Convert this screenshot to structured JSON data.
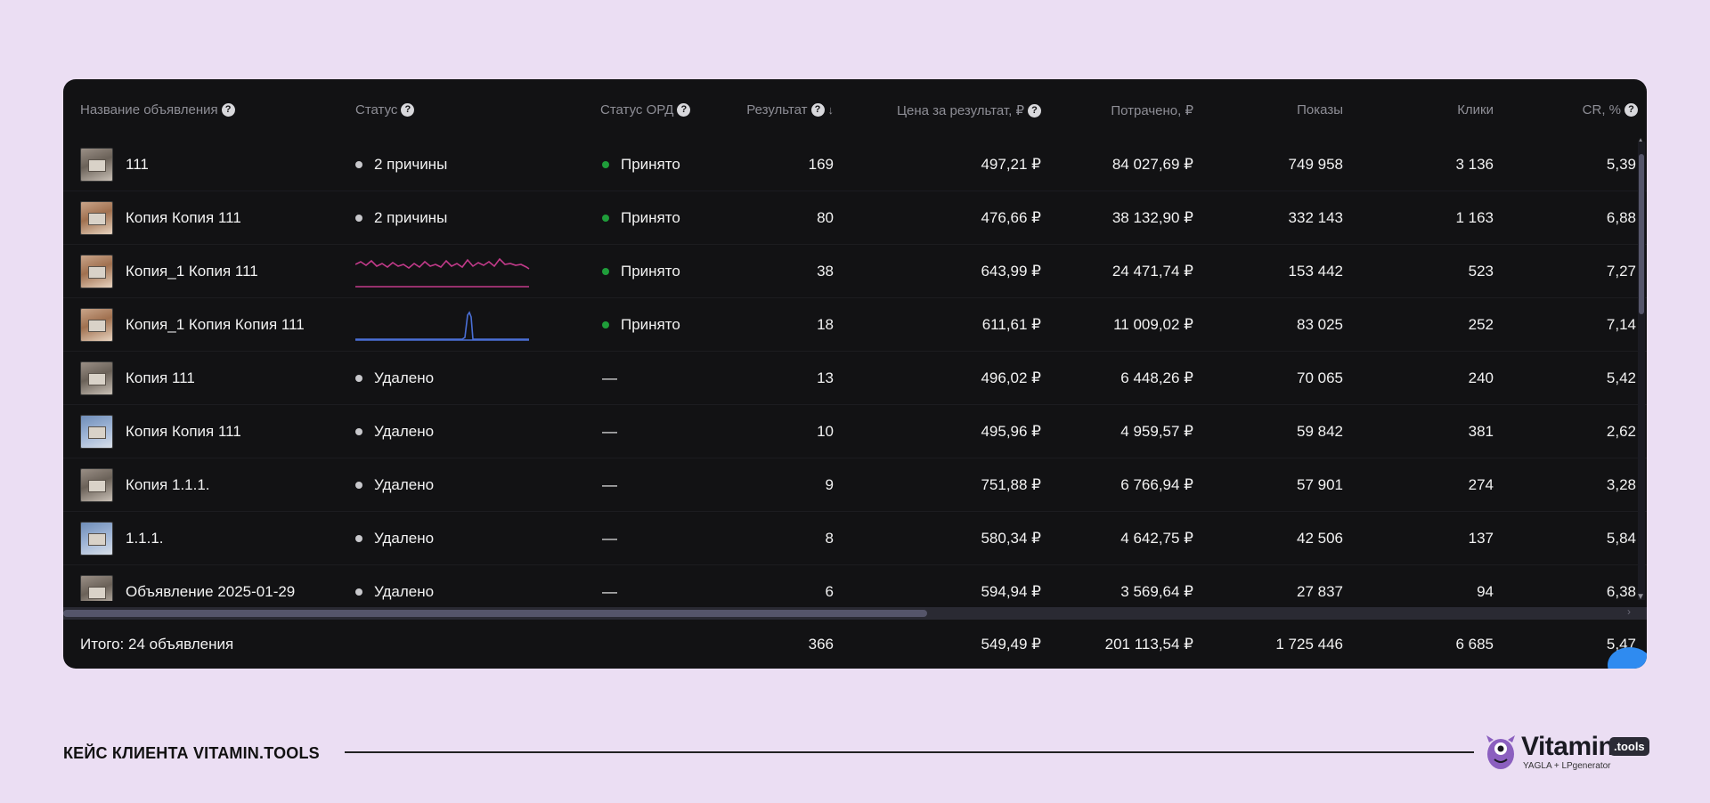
{
  "table": {
    "headers": {
      "name": "Название объявления",
      "status": "Статус",
      "ord_status": "Статус ОРД",
      "result": "Результат",
      "price_per_result": "Цена за результат, ₽",
      "spent": "Потрачено, ₽",
      "impressions": "Показы",
      "clicks": "Клики",
      "cr": "CR, %"
    },
    "rows": [
      {
        "name": "111",
        "status": "2 причины",
        "status_type": "text",
        "ord": "Принято",
        "result": "169",
        "price": "497,21 ₽",
        "spent": "84 027,69 ₽",
        "impressions": "749 958",
        "clicks": "3 136",
        "cr": "5,39",
        "thumb": "gray"
      },
      {
        "name": "Копия Копия 111",
        "status": "2 причины",
        "status_type": "text",
        "ord": "Принято",
        "result": "80",
        "price": "476,66 ₽",
        "spent": "38 132,90 ₽",
        "impressions": "332 143",
        "clicks": "1 163",
        "cr": "6,88",
        "thumb": "alt"
      },
      {
        "name": "Копия_1 Копия 111",
        "status": "",
        "status_type": "spark-pink",
        "ord": "Принято",
        "result": "38",
        "price": "643,99 ₽",
        "spent": "24 471,74 ₽",
        "impressions": "153 442",
        "clicks": "523",
        "cr": "7,27",
        "thumb": "alt"
      },
      {
        "name": "Копия_1 Копия Копия 111",
        "status": "",
        "status_type": "spark-blue",
        "ord": "Принято",
        "result": "18",
        "price": "611,61 ₽",
        "spent": "11 009,02 ₽",
        "impressions": "83 025",
        "clicks": "252",
        "cr": "7,14",
        "thumb": "alt"
      },
      {
        "name": "Копия 111",
        "status": "Удалено",
        "status_type": "text",
        "ord": "—",
        "result": "13",
        "price": "496,02 ₽",
        "spent": "6 448,26 ₽",
        "impressions": "70 065",
        "clicks": "240",
        "cr": "5,42",
        "thumb": "gray"
      },
      {
        "name": "Копия Копия 111",
        "status": "Удалено",
        "status_type": "text",
        "ord": "—",
        "result": "10",
        "price": "495,96 ₽",
        "spent": "4 959,57 ₽",
        "impressions": "59 842",
        "clicks": "381",
        "cr": "2,62",
        "thumb": "blue"
      },
      {
        "name": "Копия 1.1.1.",
        "status": "Удалено",
        "status_type": "text",
        "ord": "—",
        "result": "9",
        "price": "751,88 ₽",
        "spent": "6 766,94 ₽",
        "impressions": "57 901",
        "clicks": "274",
        "cr": "3,28",
        "thumb": "gray"
      },
      {
        "name": "1.1.1.",
        "status": "Удалено",
        "status_type": "text",
        "ord": "—",
        "result": "8",
        "price": "580,34 ₽",
        "spent": "4 642,75 ₽",
        "impressions": "42 506",
        "clicks": "137",
        "cr": "5,84",
        "thumb": "blue"
      },
      {
        "name": "Объявление 2025-01-29",
        "status": "Удалено",
        "status_type": "text",
        "ord": "—",
        "result": "6",
        "price": "594,94 ₽",
        "spent": "3 569,64 ₽",
        "impressions": "27 837",
        "clicks": "94",
        "cr": "6,38",
        "thumb": "gray"
      }
    ],
    "footer": {
      "label": "Итого: 24 объявления",
      "result": "366",
      "price": "549,49 ₽",
      "spent": "201 113,54 ₽",
      "impressions": "1 725 446",
      "clicks": "6 685",
      "cr": "5,47"
    }
  },
  "caption": {
    "case_label": "КЕЙС КЛИЕНТА VITAMIN.TOOLS",
    "logo_word": "Vitamin",
    "logo_badge": ".tools",
    "logo_sub": "YAGLA + LPgenerator"
  },
  "colors": {
    "background": "#ebdef3",
    "panel": "#121214",
    "status_ok": "#1f9d3a",
    "spark_pink": "#c23a8a",
    "spark_blue": "#4a6fd6"
  }
}
